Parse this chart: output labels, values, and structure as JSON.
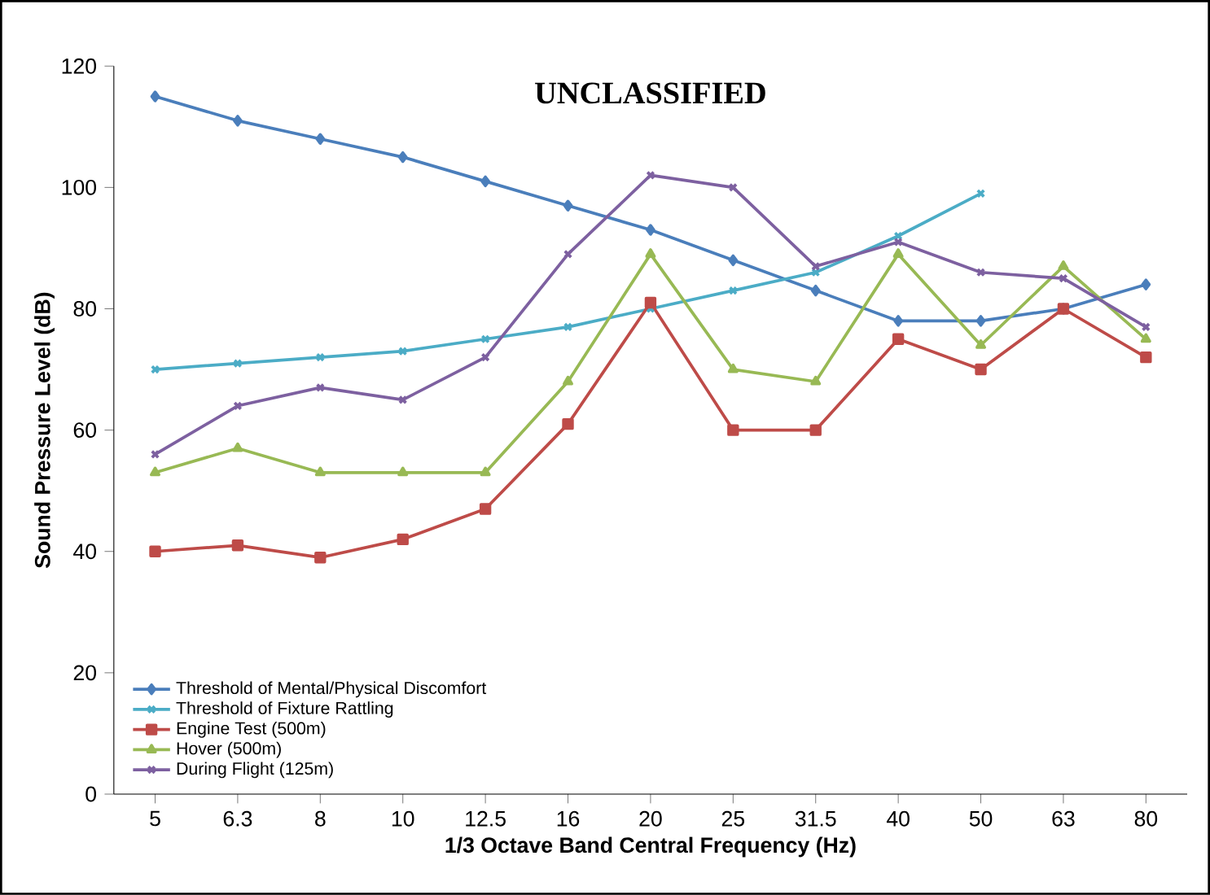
{
  "chart_data": {
    "type": "line",
    "title": "UNCLASSIFIED",
    "xlabel": "1/3 Octave Band Central Frequency (Hz)",
    "ylabel": "Sound Pressure Level (dB)",
    "categories": [
      "5",
      "6.3",
      "8",
      "10",
      "12.5",
      "16",
      "20",
      "25",
      "31.5",
      "40",
      "50",
      "63",
      "80"
    ],
    "ylim": [
      0,
      120
    ],
    "yticks": [
      0,
      20,
      40,
      60,
      80,
      100,
      120
    ],
    "grid": false,
    "legend": "bottom left",
    "line_style": "solid",
    "series": [
      {
        "name": "Threshold of Mental/Physical Discomfort",
        "color": "#4a7ebb",
        "marker": "diamond",
        "values": [
          115,
          111,
          108,
          105,
          101,
          97,
          93,
          88,
          83,
          78,
          78,
          80,
          84
        ]
      },
      {
        "name": "Threshold of Fixture Rattling",
        "color": "#4bacc6",
        "marker": "cross",
        "values": [
          70,
          71,
          72,
          73,
          75,
          77,
          80,
          83,
          86,
          92,
          99,
          null,
          null
        ]
      },
      {
        "name": "Engine Test (500m)",
        "color": "#be4b48",
        "marker": "square",
        "values": [
          40,
          41,
          39,
          42,
          47,
          61,
          81,
          60,
          60,
          75,
          70,
          80,
          72
        ]
      },
      {
        "name": "Hover (500m)",
        "color": "#98b954",
        "marker": "triangle",
        "values": [
          53,
          57,
          53,
          53,
          53,
          68,
          89,
          70,
          68,
          89,
          74,
          87,
          75
        ]
      },
      {
        "name": "During Flight (125m)",
        "color": "#7d60a0",
        "marker": "cross",
        "values": [
          56,
          64,
          67,
          65,
          72,
          89,
          102,
          100,
          87,
          91,
          86,
          85,
          77
        ]
      }
    ]
  }
}
